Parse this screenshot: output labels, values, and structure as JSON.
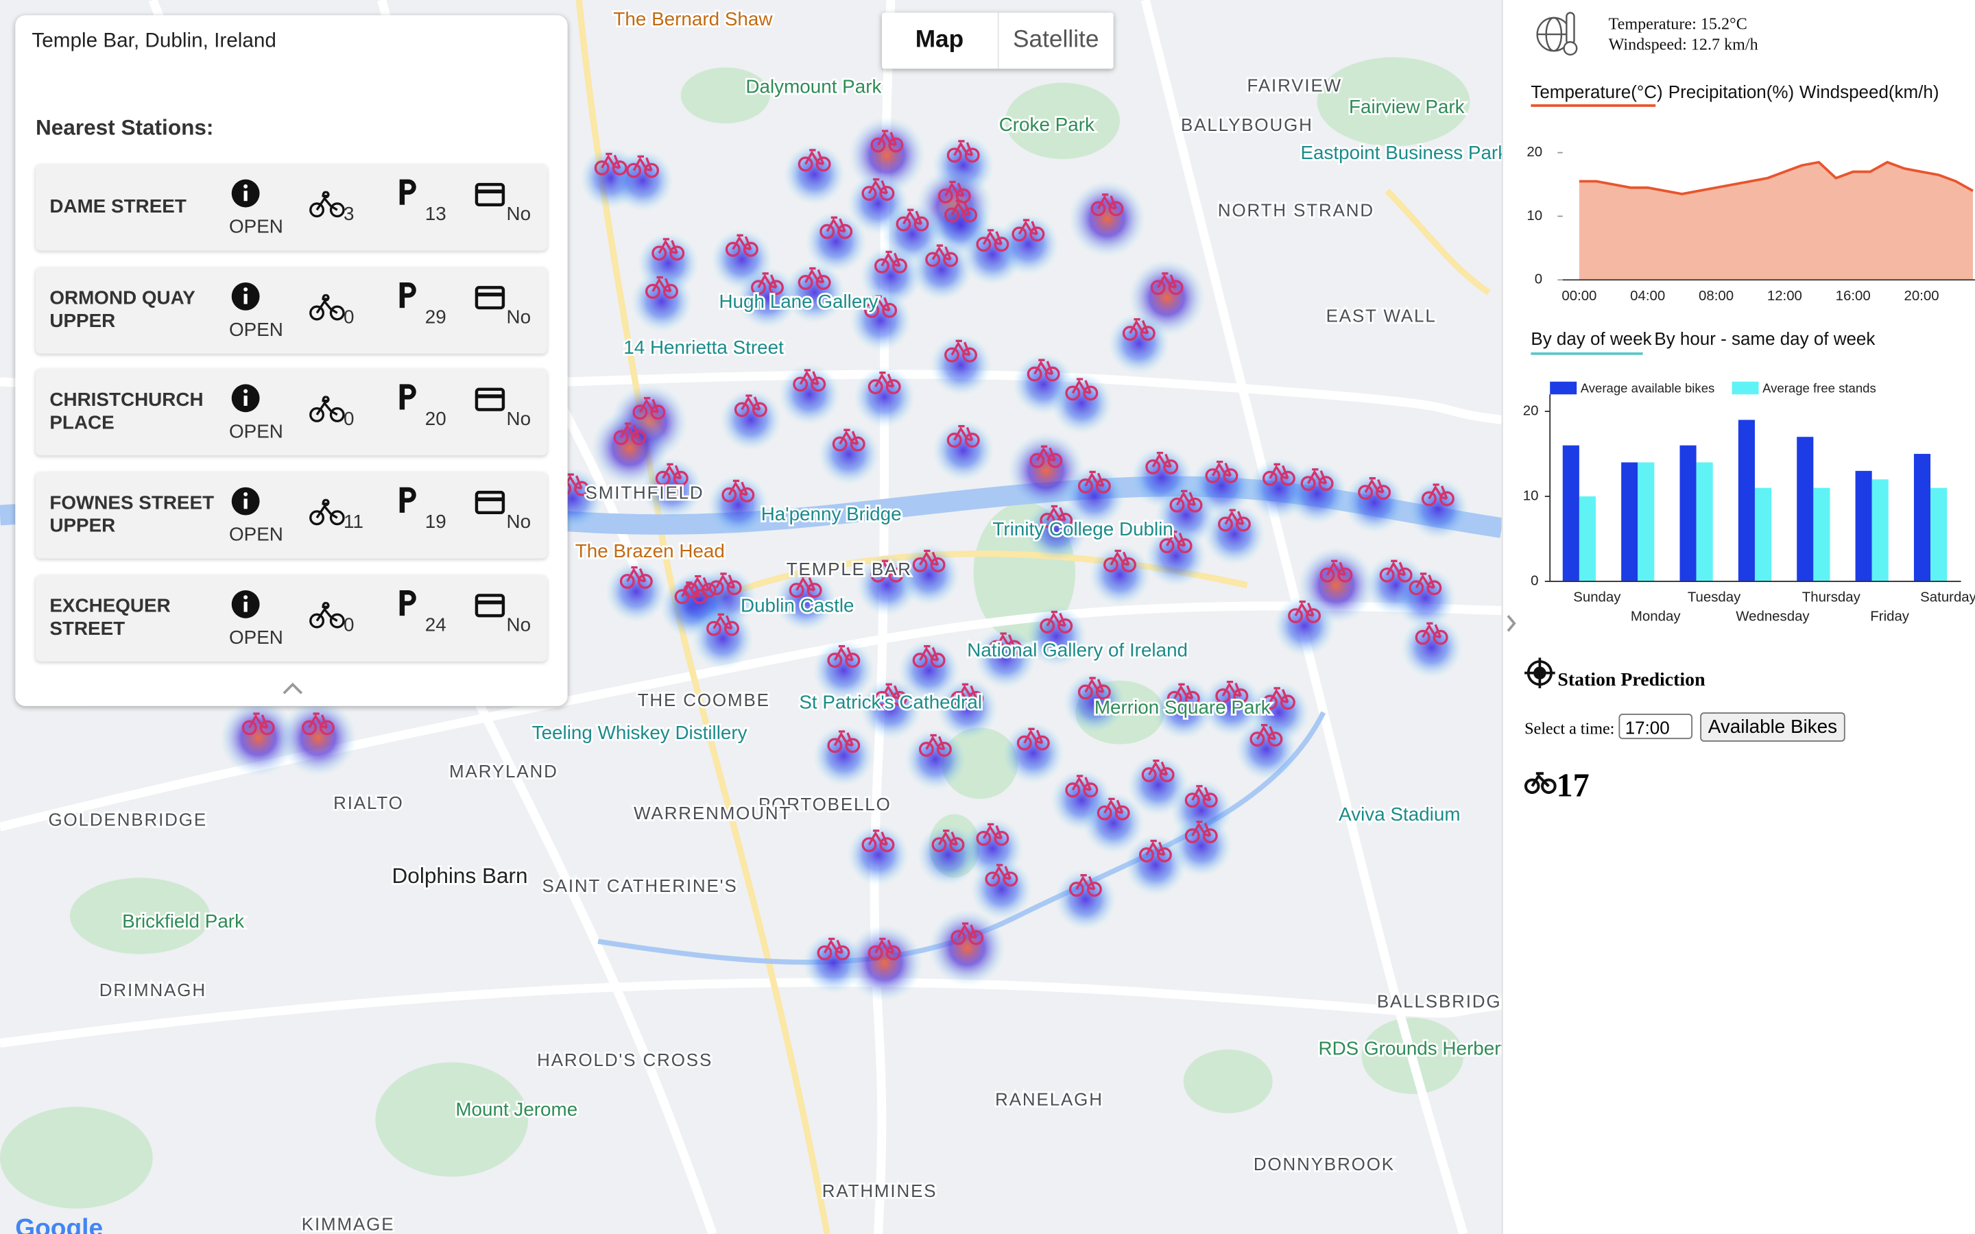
{
  "search": {
    "location": "Temple Bar, Dublin, Ireland"
  },
  "nearest": {
    "heading": "Nearest Stations:",
    "stations": [
      {
        "name": "DAME STREET",
        "status": "OPEN",
        "bikes": 3,
        "stands": 13,
        "card": "No"
      },
      {
        "name": "ORMOND QUAY UPPER",
        "status": "OPEN",
        "bikes": 0,
        "stands": 29,
        "card": "No"
      },
      {
        "name": "CHRISTCHURCH PLACE",
        "status": "OPEN",
        "bikes": 0,
        "stands": 20,
        "card": "No"
      },
      {
        "name": "FOWNES STREET UPPER",
        "status": "OPEN",
        "bikes": 11,
        "stands": 19,
        "card": "No"
      },
      {
        "name": "EXCHEQUER STREET",
        "status": "OPEN",
        "bikes": 0,
        "stands": 24,
        "card": "No"
      }
    ]
  },
  "map": {
    "toggle": [
      "Map",
      "Satellite"
    ],
    "logo": "Google",
    "labels": [
      "The Bernard Shaw",
      "Dalymount Park",
      "Croke Park",
      "FAIRVIEW",
      "BALLYBOUGH",
      "Fairview Park",
      "Eastpoint Business Park",
      "NORTH STRAND",
      "EAST WALL",
      "Hugh Lane Gallery",
      "14 Henrietta Street",
      "SMITHFIELD",
      "Ha'penny Bridge",
      "Trinity College Dublin",
      "TEMPLE BAR",
      "The Brazen Head",
      "Dublin Castle",
      "National Gallery of Ireland",
      "THE COOMBE",
      "St Patrick's Cathedral",
      "Merrion Square Park",
      "Teeling Whiskey Distillery",
      "MARYLAND",
      "RIALTO",
      "PORTOBELLO",
      "WARRENMOUNT",
      "Aviva Stadium",
      "Dolphins Barn",
      "SAINT CATHERINE'S",
      "Brickfield Park",
      "GOLDENBRIDGE",
      "DRIMNAGH",
      "BALLSBRIDGE",
      "HAROLD'S CROSS",
      "RDS Grounds Herbert Park",
      "RANELAGH",
      "Mount Jerome",
      "DONNYBROOK",
      "RATHMINES",
      "KIMMAGE"
    ]
  },
  "weather": {
    "temperature": "Temperature: 15.2°C",
    "windspeed": "Windspeed: 12.7 km/h",
    "tabs": [
      "Temperature(°C)",
      "Precipitation(%)",
      "Windspeed(km/h)"
    ]
  },
  "station_tabs": [
    "By day of week",
    "By hour - same day of week"
  ],
  "prediction": {
    "title": "Station Prediction",
    "select_label": "Select a time:",
    "time": "17:00",
    "button": "Available Bikes",
    "result": 17
  },
  "chart_data": [
    {
      "type": "line",
      "categories": [
        "00:00",
        null,
        null,
        null,
        "04:00",
        null,
        null,
        null,
        "08:00",
        null,
        null,
        null,
        "12:00",
        null,
        null,
        null,
        "16:00",
        null,
        null,
        null,
        "20:00",
        null,
        null,
        null
      ],
      "values": [
        15.5,
        15.5,
        15,
        14.5,
        14.5,
        14,
        13.5,
        14,
        14.5,
        15,
        15.5,
        16,
        17,
        18,
        18.5,
        16,
        17,
        17,
        18.5,
        17.5,
        17,
        16.5,
        15.5,
        14
      ],
      "color": "#e8552d",
      "fill": "#f5b8a3",
      "ylim": [
        0,
        22
      ],
      "yticks": [
        0,
        10,
        20
      ]
    },
    {
      "type": "bar",
      "categories": [
        "Sunday",
        "Monday",
        "Tuesday",
        "Wednesday",
        "Thursday",
        "Friday",
        "Saturday"
      ],
      "series": [
        {
          "name": "Average available bikes",
          "color": "#1c3ce6",
          "values": [
            16,
            14,
            16,
            19,
            17,
            13,
            15
          ]
        },
        {
          "name": "Average free stands",
          "color": "#5ff3f6",
          "values": [
            10,
            14,
            14,
            11,
            11,
            12,
            11
          ]
        }
      ],
      "ylim": [
        0,
        22
      ],
      "yticks": [
        0,
        10,
        20
      ]
    }
  ]
}
